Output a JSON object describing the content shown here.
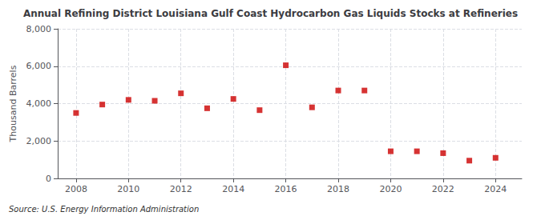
{
  "chart_data": {
    "type": "scatter",
    "title": "Annual Refining District Louisiana Gulf Coast Hydrocarbon Gas Liquids Stocks at Refineries",
    "ylabel": "Thousand Barrels",
    "annotation": "Source: U.S. Energy Information Administration",
    "x": [
      2008,
      2009,
      2010,
      2011,
      2012,
      2013,
      2014,
      2015,
      2016,
      2017,
      2018,
      2019,
      2020,
      2021,
      2022,
      2023,
      2024
    ],
    "values": [
      3500,
      3950,
      4200,
      4150,
      4550,
      3750,
      4250,
      3650,
      6050,
      3800,
      4700,
      4700,
      1450,
      1450,
      1350,
      950,
      1100
    ],
    "color": "#cc0000",
    "marker": "square",
    "xlim": [
      2007.3,
      2025.0
    ],
    "xticks": [
      2008,
      2010,
      2012,
      2014,
      2016,
      2018,
      2020,
      2022,
      2024
    ],
    "ylim": [
      0,
      8000
    ],
    "yticks": [
      0,
      {
        "value": 2000,
        "label": "2,000"
      },
      {
        "value": 4000,
        "label": "4,000"
      },
      {
        "value": 6000,
        "label": "6,000"
      },
      {
        "value": 8000,
        "label": "8,000"
      }
    ],
    "grid": true
  }
}
